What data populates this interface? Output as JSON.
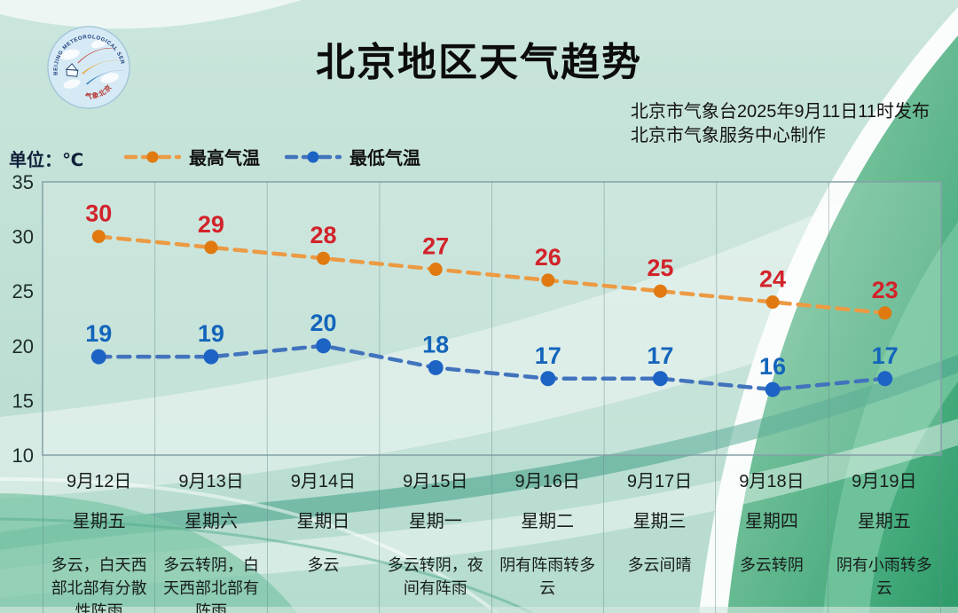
{
  "header": {
    "title": "北京地区天气趋势",
    "issued_line": "北京市气象台2025年9月11日11时发布",
    "produced_line": "北京市气象服务中心制作",
    "logo_ring_text": "BEIJING METEOROLOGICAL SERVICE",
    "logo_bottom_text": "气象北京"
  },
  "legend": {
    "unit_label": "单位：℃",
    "max_label": "最高气温",
    "min_label": "最低气温"
  },
  "colors": {
    "max_line": "#EC9A43",
    "max_marker": "#E0790F",
    "max_value_label": "#D2232A",
    "min_line": "#4273BD",
    "min_marker": "#1C63C4",
    "min_value_label": "#1365BB"
  },
  "chart_data": {
    "type": "line",
    "title": "北京地区天气趋势",
    "ylabel": "℃",
    "ylim": [
      10,
      35
    ],
    "yticks": [
      35,
      30,
      25,
      20,
      15,
      10
    ],
    "categories": [
      "9月12日",
      "9月13日",
      "9月14日",
      "9月15日",
      "9月16日",
      "9月17日",
      "9月18日",
      "9月19日"
    ],
    "weekdays": [
      "星期五",
      "星期六",
      "星期日",
      "星期一",
      "星期二",
      "星期三",
      "星期四",
      "星期五"
    ],
    "weather": [
      "多云，白天西部北部有分散性阵雨",
      "多云转阴，白天西部北部有阵雨",
      "多云",
      "多云转阴，夜间有阵雨",
      "阴有阵雨转多云",
      "多云间晴",
      "多云转阴",
      "阴有小雨转多云"
    ],
    "series": [
      {
        "name": "最高气温",
        "values": [
          30,
          29,
          28,
          27,
          26,
          25,
          24,
          23
        ]
      },
      {
        "name": "最低气温",
        "values": [
          19,
          19,
          20,
          18,
          17,
          17,
          16,
          17
        ]
      }
    ],
    "grid": "vertical-only",
    "legend_position": "top-left",
    "line_style": "dashed"
  }
}
